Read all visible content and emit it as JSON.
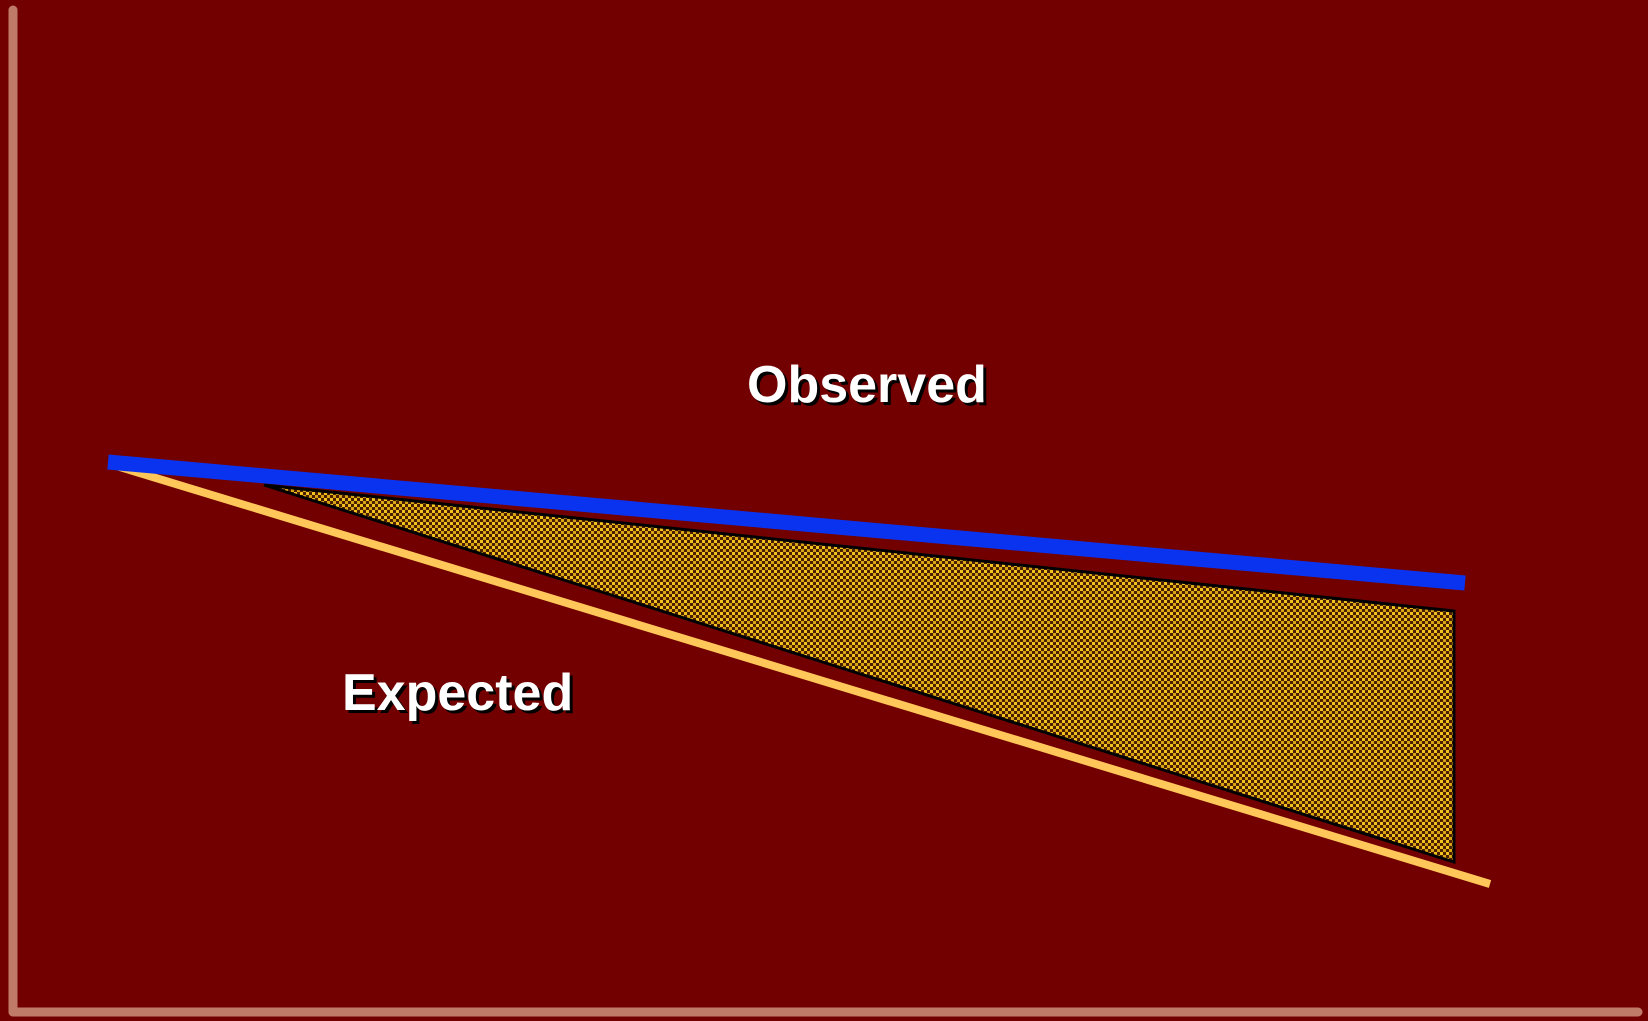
{
  "diagram": {
    "labels": {
      "observed": "Observed",
      "expected": "Expected"
    },
    "colors": {
      "background": "#730000",
      "axis": "#c07a68",
      "observed_line": "#0a33f0",
      "expected_line": "#ffc75a",
      "gap_fill_dark": "#3a1a00",
      "gap_fill_light": "#f0c020",
      "gap_outline": "#000000"
    }
  }
}
